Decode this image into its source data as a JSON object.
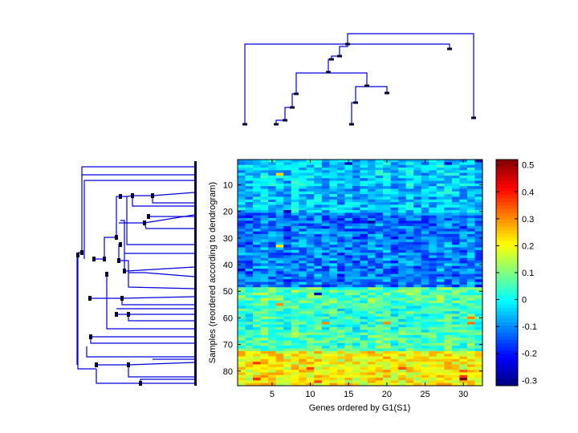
{
  "chart_data": {
    "type": "heatmap",
    "title": "",
    "xlabel": "Genes ordered by G1(S1)",
    "ylabel": "Samples (reordered according to dendrogram)",
    "n_cols": 32,
    "n_rows": 85,
    "xlim": [
      0.5,
      32.5
    ],
    "ylim": [
      0.5,
      85.5
    ],
    "x_ticks": [
      5,
      10,
      15,
      20,
      25,
      30
    ],
    "y_ticks": [
      10,
      20,
      30,
      40,
      50,
      60,
      70,
      80
    ],
    "colormap": "jet",
    "clim": [
      -0.32,
      0.52
    ],
    "colorbar": {
      "ticks": [
        0.5,
        0.4,
        0.3,
        0.2,
        0.1,
        0,
        -0.1,
        -0.2,
        -0.3
      ],
      "tick_labels": [
        "0.5",
        "0.4",
        "0.3",
        "0.2",
        "0.1",
        "0",
        "-0.1",
        "-0.2",
        "-0.3"
      ]
    },
    "row_band_means": [
      {
        "rows": [
          1,
          10
        ],
        "mean": -0.05
      },
      {
        "rows": [
          11,
          20
        ],
        "mean": -0.06
      },
      {
        "rows": [
          21,
          30
        ],
        "mean": -0.12
      },
      {
        "rows": [
          31,
          40
        ],
        "mean": -0.11
      },
      {
        "rows": [
          41,
          48
        ],
        "mean": -0.12
      },
      {
        "rows": [
          49,
          55
        ],
        "mean": 0.06
      },
      {
        "rows": [
          56,
          64
        ],
        "mean": 0.03
      },
      {
        "rows": [
          65,
          72
        ],
        "mean": 0.05
      },
      {
        "rows": [
          73,
          85
        ],
        "mean": 0.2
      }
    ],
    "notable_cells": [
      {
        "row": 1,
        "col": 32,
        "value": -0.3
      },
      {
        "row": 2,
        "col": 15,
        "value": -0.25
      },
      {
        "row": 2,
        "col": 28,
        "value": -0.24
      },
      {
        "row": 6,
        "col": 6,
        "value": 0.24
      },
      {
        "row": 24,
        "col": 18,
        "value": -0.3
      },
      {
        "row": 20,
        "col": 7,
        "value": -0.28
      },
      {
        "row": 42,
        "col": 1,
        "value": -0.25
      },
      {
        "row": 33,
        "col": 6,
        "value": 0.22
      },
      {
        "row": 51,
        "col": 11,
        "value": -0.27
      },
      {
        "row": 55,
        "col": 6,
        "value": 0.3
      },
      {
        "row": 62,
        "col": 20,
        "value": 0.3
      },
      {
        "row": 62,
        "col": 12,
        "value": 0.3
      },
      {
        "row": 60,
        "col": 31,
        "value": 0.3
      },
      {
        "row": 62,
        "col": 31,
        "value": 0.32
      },
      {
        "row": 77,
        "col": 3,
        "value": 0.37
      },
      {
        "row": 79,
        "col": 22,
        "value": 0.35
      },
      {
        "row": 79,
        "col": 10,
        "value": 0.36
      },
      {
        "row": 83,
        "col": 30,
        "value": 0.52
      },
      {
        "row": 83,
        "col": 3,
        "value": 0.38
      },
      {
        "row": 84,
        "col": 11,
        "value": 0.36
      },
      {
        "row": 82,
        "col": 30,
        "value": 0.37
      },
      {
        "row": 80,
        "col": 30,
        "value": 0.34
      }
    ],
    "top_dendrogram": {
      "leaves_count": 10,
      "color": "#0000dd"
    },
    "left_dendrogram": {
      "color": "#0000dd"
    }
  }
}
